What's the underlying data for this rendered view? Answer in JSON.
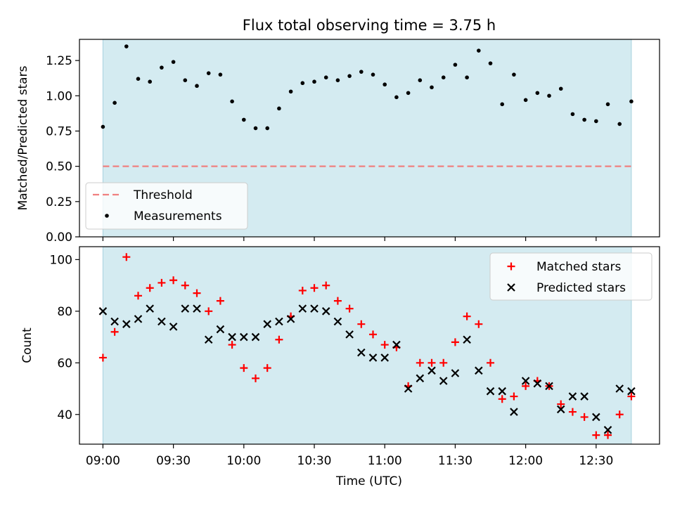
{
  "title": "Flux total observing time = 3.75 h",
  "x_ticks": [
    "09:00",
    "09:30",
    "10:00",
    "10:30",
    "11:00",
    "11:30",
    "12:00",
    "12:30"
  ],
  "xlabel": "Time (UTC)",
  "colors": {
    "observing_span": "#d4ebf1",
    "threshold": "#f08080",
    "measurements": "#000000",
    "matched": "#ff0000",
    "predicted": "#000000"
  },
  "chart_data": [
    {
      "type": "scatter",
      "ylabel": "Matched/Predicted stars",
      "xlim": [
        "08:50",
        "12:57"
      ],
      "ylim": [
        0,
        1.4
      ],
      "y_ticks": [
        "0.00",
        "0.25",
        "0.50",
        "0.75",
        "1.00",
        "1.25"
      ],
      "observing_span": [
        "09:00",
        "12:45"
      ],
      "threshold": 0.5,
      "legend_position": "lower-left",
      "legend": [
        "Threshold",
        "Measurements"
      ],
      "x": [
        "09:00",
        "09:05",
        "09:10",
        "09:15",
        "09:20",
        "09:25",
        "09:30",
        "09:35",
        "09:40",
        "09:45",
        "09:50",
        "09:55",
        "10:00",
        "10:05",
        "10:10",
        "10:15",
        "10:20",
        "10:25",
        "10:30",
        "10:35",
        "10:40",
        "10:45",
        "10:50",
        "10:55",
        "11:00",
        "11:05",
        "11:10",
        "11:15",
        "11:20",
        "11:25",
        "11:30",
        "11:35",
        "11:40",
        "11:45",
        "11:50",
        "11:55",
        "12:00",
        "12:05",
        "12:10",
        "12:15",
        "12:20",
        "12:25",
        "12:30",
        "12:35",
        "12:40",
        "12:45"
      ],
      "values": [
        0.78,
        0.95,
        1.35,
        1.12,
        1.1,
        1.2,
        1.24,
        1.11,
        1.07,
        1.16,
        1.15,
        0.96,
        0.83,
        0.77,
        0.77,
        0.91,
        1.03,
        1.09,
        1.1,
        1.13,
        1.11,
        1.14,
        1.17,
        1.15,
        1.08,
        0.99,
        1.02,
        1.11,
        1.06,
        1.13,
        1.22,
        1.13,
        1.32,
        1.23,
        0.94,
        1.15,
        0.97,
        1.02,
        1.0,
        1.05,
        0.87,
        0.83,
        0.82,
        0.94,
        0.8,
        0.96
      ]
    },
    {
      "type": "scatter",
      "ylabel": "Count",
      "xlim": [
        "08:50",
        "12:57"
      ],
      "ylim": [
        28.5,
        105
      ],
      "y_ticks": [
        "40",
        "60",
        "80",
        "100"
      ],
      "observing_span": [
        "09:00",
        "12:45"
      ],
      "legend_position": "top-right",
      "x": [
        "09:00",
        "09:05",
        "09:10",
        "09:15",
        "09:20",
        "09:25",
        "09:30",
        "09:35",
        "09:40",
        "09:45",
        "09:50",
        "09:55",
        "10:00",
        "10:05",
        "10:10",
        "10:15",
        "10:20",
        "10:25",
        "10:30",
        "10:35",
        "10:40",
        "10:45",
        "10:50",
        "10:55",
        "11:00",
        "11:05",
        "11:10",
        "11:15",
        "11:20",
        "11:25",
        "11:30",
        "11:35",
        "11:40",
        "11:45",
        "11:50",
        "11:55",
        "12:00",
        "12:05",
        "12:10",
        "12:15",
        "12:20",
        "12:25",
        "12:30",
        "12:35",
        "12:40",
        "12:45"
      ],
      "series": [
        {
          "name": "Matched stars",
          "marker": "+",
          "values": [
            62,
            72,
            101,
            86,
            89,
            91,
            92,
            90,
            87,
            80,
            84,
            67,
            58,
            54,
            58,
            69,
            78,
            88,
            89,
            90,
            84,
            81,
            75,
            71,
            67,
            66,
            51,
            60,
            60,
            60,
            68,
            78,
            75,
            60,
            46,
            47,
            51,
            53,
            51,
            44,
            41,
            39,
            32,
            32,
            40,
            47
          ]
        },
        {
          "name": "Predicted stars",
          "marker": "x",
          "values": [
            80,
            76,
            75,
            77,
            81,
            76,
            74,
            81,
            81,
            69,
            73,
            70,
            70,
            70,
            75,
            76,
            77,
            81,
            81,
            80,
            76,
            71,
            64,
            62,
            62,
            67,
            50,
            54,
            57,
            53,
            56,
            69,
            57,
            49,
            49,
            41,
            53,
            52,
            51,
            42,
            47,
            47,
            39,
            34,
            50,
            49
          ]
        }
      ]
    }
  ]
}
